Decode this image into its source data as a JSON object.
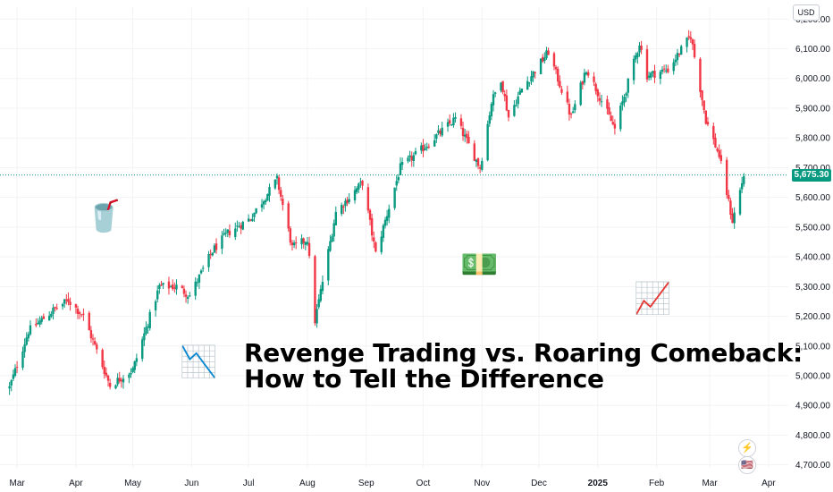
{
  "chart_data": {
    "type": "candlestick",
    "x_labels": [
      "Mar",
      "Apr",
      "May",
      "Jun",
      "Jul",
      "Aug",
      "Sep",
      "Oct",
      "Nov",
      "Dec",
      "2025",
      "Feb",
      "Mar",
      "Apr"
    ],
    "y_ticks": [
      "6,200.00",
      "6,100.00",
      "6,000.00",
      "5,900.00",
      "5,800.00",
      "5,700.00",
      "5,600.00",
      "5,500.00",
      "5,400.00",
      "5,300.00",
      "5,200.00",
      "5,100.00",
      "5,000.00",
      "4,900.00",
      "4,800.00",
      "4,700.00"
    ],
    "ylim": [
      4690,
      6240
    ],
    "current_price": 5675.3,
    "current_price_label": "5,675.30",
    "currency": "USD",
    "up_color": "#089981",
    "down_color": "#f23645",
    "key_points": [
      {
        "date": "2024-02-26",
        "close": 4960
      },
      {
        "date": "2024-03-07",
        "close": 5150
      },
      {
        "date": "2024-03-20",
        "close": 5220
      },
      {
        "date": "2024-03-28",
        "close": 5254
      },
      {
        "date": "2024-04-05",
        "close": 5200
      },
      {
        "date": "2024-04-19",
        "close": 4967
      },
      {
        "date": "2024-05-01",
        "close": 5020
      },
      {
        "date": "2024-05-15",
        "close": 5300
      },
      {
        "date": "2024-05-24",
        "close": 5300
      },
      {
        "date": "2024-05-31",
        "close": 5270
      },
      {
        "date": "2024-06-12",
        "close": 5420
      },
      {
        "date": "2024-06-20",
        "close": 5480
      },
      {
        "date": "2024-07-02",
        "close": 5530
      },
      {
        "date": "2024-07-16",
        "close": 5660
      },
      {
        "date": "2024-07-24",
        "close": 5430
      },
      {
        "date": "2024-08-01",
        "close": 5460
      },
      {
        "date": "2024-08-05",
        "close": 5185
      },
      {
        "date": "2024-08-16",
        "close": 5550
      },
      {
        "date": "2024-08-30",
        "close": 5650
      },
      {
        "date": "2024-09-06",
        "close": 5410
      },
      {
        "date": "2024-09-19",
        "close": 5700
      },
      {
        "date": "2024-09-30",
        "close": 5760
      },
      {
        "date": "2024-10-18",
        "close": 5865
      },
      {
        "date": "2024-10-31",
        "close": 5700
      },
      {
        "date": "2024-11-06",
        "close": 5920
      },
      {
        "date": "2024-11-11",
        "close": 6000
      },
      {
        "date": "2024-11-15",
        "close": 5870
      },
      {
        "date": "2024-11-22",
        "close": 5965
      },
      {
        "date": "2024-12-06",
        "close": 6090
      },
      {
        "date": "2024-12-18",
        "close": 5870
      },
      {
        "date": "2024-12-26",
        "close": 6035
      },
      {
        "date": "2025-01-10",
        "close": 5830
      },
      {
        "date": "2025-01-23",
        "close": 6120
      },
      {
        "date": "2025-01-27",
        "close": 6010
      },
      {
        "date": "2025-02-07",
        "close": 6030
      },
      {
        "date": "2025-02-19",
        "close": 6144
      },
      {
        "date": "2025-02-27",
        "close": 5860
      },
      {
        "date": "2025-03-06",
        "close": 5740
      },
      {
        "date": "2025-03-13",
        "close": 5520
      },
      {
        "date": "2025-03-19",
        "close": 5675
      }
    ]
  },
  "headline": {
    "line1": "Revenge Trading vs. Roaring Comeback:",
    "line2": "How to Tell the Difference"
  },
  "emojis": {
    "cup": "🥤",
    "money": "💵",
    "chart_up": "📈",
    "chart_down": "📉",
    "flash": "⚡",
    "flag": "🇺🇸"
  }
}
